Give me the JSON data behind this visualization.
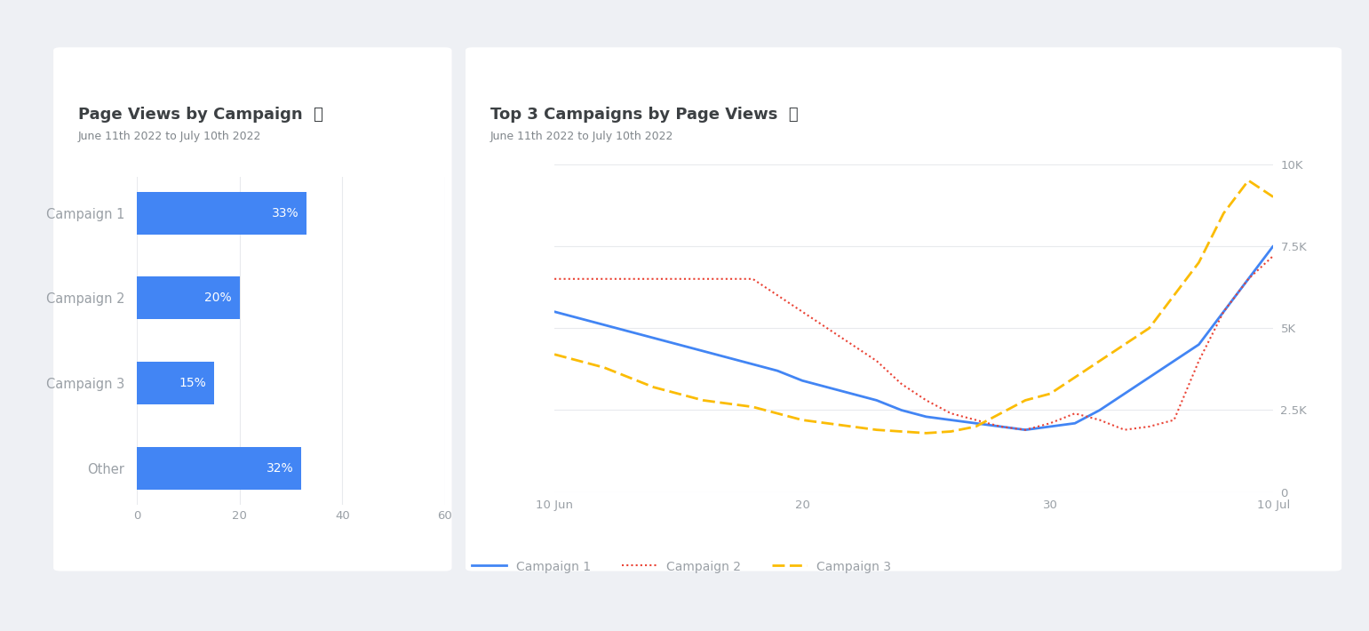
{
  "bar_labels": [
    "Campaign 1",
    "Campaign 2",
    "Campaign 3",
    "Other"
  ],
  "bar_values": [
    33,
    20,
    15,
    32
  ],
  "bar_color": "#4285F4",
  "bar_text_color": "#ffffff",
  "bar_chart_title": "Page Views by Campaign  ⓘ",
  "bar_chart_subtitle": "June 11th 2022 to July 10th 2022",
  "bar_xlim": [
    0,
    60
  ],
  "bar_xticks": [
    0,
    20,
    40,
    60
  ],
  "line_chart_title": "Top 3 Campaigns by Page Views  ⓘ",
  "line_chart_subtitle": "June 11th 2022 to July 10th 2022",
  "x_values": [
    0,
    1,
    2,
    3,
    4,
    5,
    6,
    7,
    8,
    9,
    10,
    11,
    12,
    13,
    14,
    15,
    16,
    17,
    18,
    19,
    20,
    21,
    22,
    23,
    24,
    25,
    26,
    27,
    28,
    29
  ],
  "x_tick_positions": [
    0,
    10,
    20,
    29
  ],
  "x_tick_labels": [
    "10 Jun",
    "20",
    "30",
    "10 Jul"
  ],
  "campaign1_y": [
    5500,
    5300,
    5100,
    4900,
    4700,
    4500,
    4300,
    4100,
    3900,
    3700,
    3400,
    3200,
    3000,
    2800,
    2500,
    2300,
    2200,
    2100,
    2000,
    1900,
    2000,
    2100,
    2500,
    3000,
    3500,
    4000,
    4500,
    5500,
    6500,
    7500
  ],
  "campaign2_y": [
    6500,
    6500,
    6500,
    6500,
    6500,
    6500,
    6500,
    6500,
    6500,
    6000,
    5500,
    5000,
    4500,
    4000,
    3300,
    2800,
    2400,
    2200,
    2000,
    1900,
    2100,
    2400,
    2200,
    1900,
    2000,
    2200,
    4000,
    5500,
    6500,
    7200
  ],
  "campaign3_y": [
    4200,
    4000,
    3800,
    3500,
    3200,
    3000,
    2800,
    2700,
    2600,
    2400,
    2200,
    2100,
    2000,
    1900,
    1850,
    1800,
    1850,
    2000,
    2400,
    2800,
    3000,
    3500,
    4000,
    4500,
    5000,
    6000,
    7000,
    8500,
    9500,
    9000
  ],
  "campaign1_color": "#4285F4",
  "campaign2_color": "#EA4335",
  "campaign3_color": "#FBBC04",
  "line_ylim": [
    0,
    10000
  ],
  "line_ytick_positions": [
    0,
    2500,
    5000,
    7500,
    10000
  ],
  "line_ytick_labels": [
    "0",
    "2.5K",
    "5K",
    "7.5K",
    "10K"
  ],
  "bg_color": "#eef0f4",
  "card_color": "#ffffff",
  "title_color": "#3c4043",
  "subtitle_color": "#80868b",
  "label_color": "#9aa0a6",
  "grid_color": "#e8eaed"
}
